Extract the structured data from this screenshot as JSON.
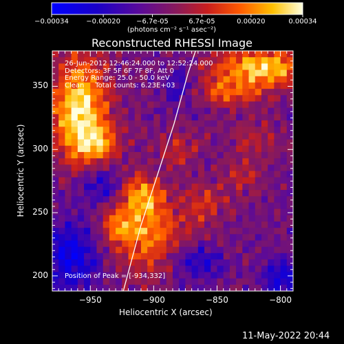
{
  "colorbar": {
    "ticks": [
      "-0.00034",
      "-0.00020",
      "-6.7e-05",
      "6.7e-05",
      "0.00020",
      "0.00034"
    ],
    "unit_label": "(photons cm⁻² s⁻¹ asec⁻²)",
    "range": [
      -0.00034,
      0.00034
    ]
  },
  "chart_data": {
    "type": "heatmap",
    "title": "Reconstructed RHESSI Image",
    "xlabel": "Heliocentric X (arcsec)",
    "ylabel": "Heliocentric Y (arcsec)",
    "xlim": [
      -980,
      -790
    ],
    "ylim": [
      188,
      378
    ],
    "xticks": [
      -950,
      -900,
      -850,
      -800
    ],
    "yticks": [
      200,
      250,
      300,
      350
    ],
    "xtick_labels": [
      "−950",
      "−900",
      "−850",
      "−800"
    ],
    "ytick_labels": [
      "200",
      "250",
      "300",
      "350"
    ],
    "annotations": [
      "26-Jun-2012 12:46:24.000 to 12:52:24.000",
      "Detectors: 3F 5F 6F 7F 8F, Att 0",
      "Energy Range: 25.0 - 50.0 keV",
      "Clean     Total counts: 6.23E+03"
    ],
    "peak_label": "Position of Peak = [-934,332]",
    "peak": [
      -934,
      332
    ],
    "limb_curve": [
      [
        -924,
        188
      ],
      [
        -910,
        240
      ],
      [
        -897,
        280
      ],
      [
        -884,
        320
      ],
      [
        -873,
        360
      ],
      [
        -867,
        378
      ]
    ],
    "grid_size": [
      38,
      38
    ],
    "hot_regions": [
      {
        "x": -958,
        "y": 332,
        "amp": 1.0,
        "sx": 16,
        "sy": 28
      },
      {
        "x": -945,
        "y": 305,
        "amp": 0.6,
        "sx": 12,
        "sy": 10
      },
      {
        "x": -815,
        "y": 365,
        "amp": 0.9,
        "sx": 28,
        "sy": 10
      },
      {
        "x": -840,
        "y": 345,
        "amp": 0.5,
        "sx": 20,
        "sy": 8
      },
      {
        "x": -905,
        "y": 235,
        "amp": 0.7,
        "sx": 18,
        "sy": 22
      },
      {
        "x": -910,
        "y": 265,
        "amp": 0.55,
        "sx": 12,
        "sy": 10
      },
      {
        "x": -930,
        "y": 240,
        "amp": 0.45,
        "sx": 10,
        "sy": 12
      },
      {
        "x": -860,
        "y": 255,
        "amp": 0.35,
        "sx": 12,
        "sy": 14
      },
      {
        "x": -830,
        "y": 280,
        "amp": 0.3,
        "sx": 12,
        "sy": 10
      },
      {
        "x": -880,
        "y": 300,
        "amp": 0.3,
        "sx": 10,
        "sy": 12
      },
      {
        "x": -820,
        "y": 310,
        "amp": 0.3,
        "sx": 14,
        "sy": 10
      }
    ],
    "cold_regions": [
      {
        "x": -965,
        "y": 215,
        "amp": -0.6,
        "sx": 16,
        "sy": 20
      },
      {
        "x": -800,
        "y": 198,
        "amp": -0.55,
        "sx": 10,
        "sy": 10
      },
      {
        "x": -940,
        "y": 270,
        "amp": -0.45,
        "sx": 12,
        "sy": 12
      },
      {
        "x": -865,
        "y": 210,
        "amp": -0.4,
        "sx": 14,
        "sy": 10
      },
      {
        "x": -880,
        "y": 350,
        "amp": -0.35,
        "sx": 10,
        "sy": 12
      }
    ]
  },
  "footer": {
    "timestamp": "11-May-2022 20:44"
  }
}
